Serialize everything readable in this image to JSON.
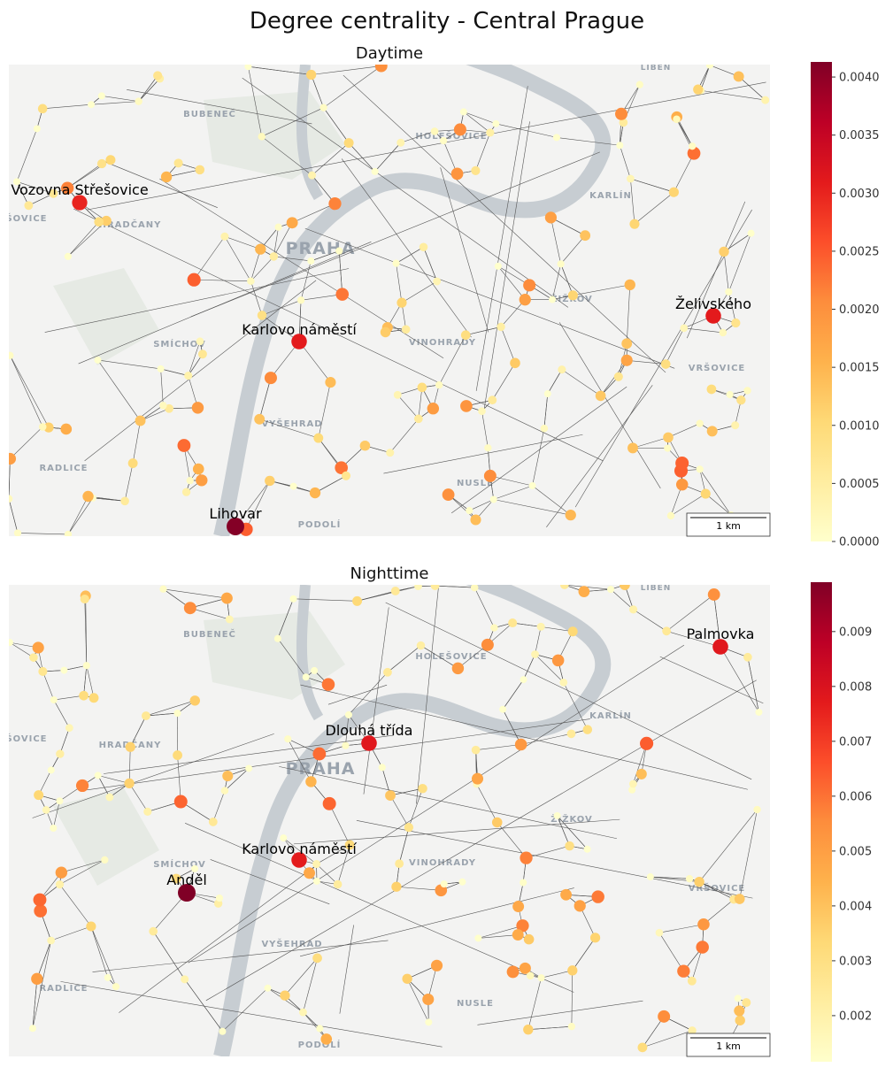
{
  "chart_data": {
    "type": "network-map",
    "title": "Degree centrality - Central Prague",
    "map_labels": [
      "LIBEŇ",
      "BUBENEČ",
      "HOLEŠOVICE",
      "KARLÍN",
      "ŠOVICE",
      "HRADČANY",
      "PRAHA",
      "ŽIŽKOV",
      "SMÍCHOV",
      "VINOHRADY",
      "VRŠOVICE",
      "VYŠEHRAD",
      "RADLICE",
      "NUSLE",
      "PODOLÍ"
    ],
    "scale_label": "1 km",
    "panels": [
      {
        "title": "Daytime",
        "clim": [
          0,
          0.00413
        ],
        "cticks": [
          {
            "value": 0,
            "label": "0.0000"
          },
          {
            "value": 0.0005,
            "label": "0.0005"
          },
          {
            "value": 0.001,
            "label": "0.0010"
          },
          {
            "value": 0.0015,
            "label": "0.0015"
          },
          {
            "value": 0.002,
            "label": "0.0020"
          },
          {
            "value": 0.0025,
            "label": "0.0025"
          },
          {
            "value": 0.003,
            "label": "0.0030"
          },
          {
            "value": 0.0035,
            "label": "0.0035"
          },
          {
            "value": 0.004,
            "label": "0.0040"
          }
        ],
        "nodes": [
          {
            "label": "Vozovna Střešovice",
            "value": 0.003
          },
          {
            "label": "Karlovo náměstí",
            "value": 0.0031
          },
          {
            "label": "Želivského",
            "value": 0.0031
          },
          {
            "label": "Lihovar",
            "value": 0.0041
          }
        ]
      },
      {
        "title": "Nighttime",
        "clim": [
          0.00116,
          0.0099
        ],
        "cticks": [
          0.002,
          0.003,
          0.004,
          0.005,
          0.006,
          0.007,
          0.008,
          0.009
        ],
        "nodes": [
          {
            "label": "Palmovka",
            "value": 0.0078
          },
          {
            "label": "Dlouhá třída",
            "value": 0.0078
          },
          {
            "label": "Karlovo náměstí",
            "value": 0.0077
          },
          {
            "label": "Anděl",
            "value": 0.0099
          }
        ]
      }
    ]
  }
}
